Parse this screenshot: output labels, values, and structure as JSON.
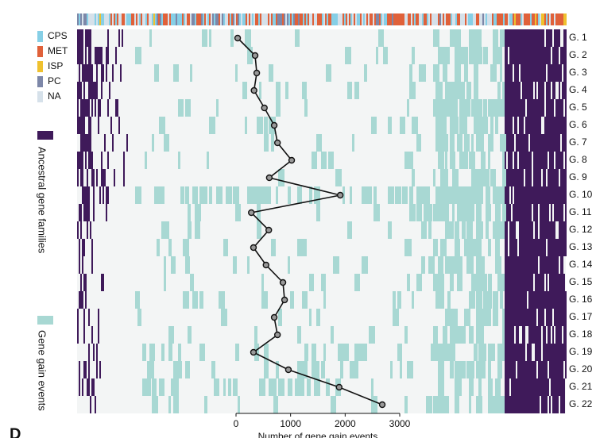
{
  "chart_data": {
    "type": "line",
    "legend": [
      {
        "name": "CPS",
        "color": "#86cfe6"
      },
      {
        "name": "MET",
        "color": "#e0613a"
      },
      {
        "name": "ISP",
        "color": "#efc12f"
      },
      {
        "name": "PC",
        "color": "#7d87a8"
      },
      {
        "name": "NA",
        "color": "#d6e1ea"
      }
    ],
    "side_labels": [
      {
        "name": "Ancestral gene families",
        "color": "#3f1a5a"
      },
      {
        "name": "Gene gain events",
        "color": "#a8d8d3"
      }
    ],
    "categories": [
      "G. 1",
      "G. 2",
      "G. 3",
      "G. 4",
      "G. 5",
      "G. 6",
      "G. 7",
      "G. 8",
      "G. 9",
      "G. 10",
      "G. 11",
      "G. 12",
      "G. 13",
      "G. 14",
      "G. 15",
      "G. 16",
      "G. 17",
      "G. 18",
      "G. 19",
      "G. 20",
      "G. 21",
      "G. 22"
    ],
    "series": [
      {
        "color": "#111111",
        "values": [
          30,
          350,
          380,
          330,
          520,
          700,
          760,
          1020,
          610,
          1910,
          280,
          600,
          320,
          550,
          860,
          890,
          700,
          760,
          320,
          960,
          1890,
          2680
        ]
      }
    ],
    "xlim": [
      0,
      3000
    ],
    "xticks": [
      0,
      1000,
      2000,
      3000
    ],
    "xlabel": "Number of gene gain events",
    "panel_label": "D"
  }
}
